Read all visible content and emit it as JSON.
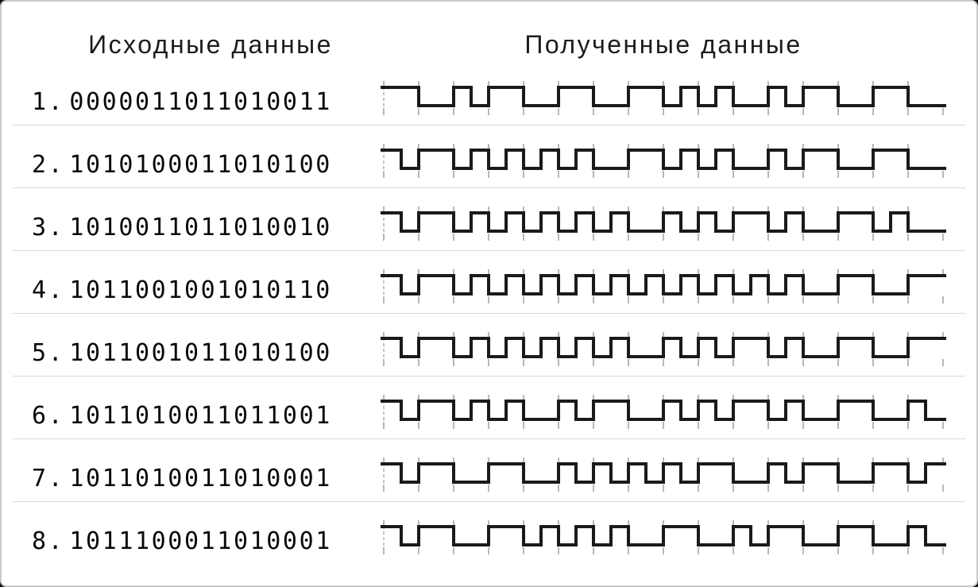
{
  "headers": {
    "source_label": "Исходные данные",
    "received_label": "Полученные данные"
  },
  "rows": [
    {
      "num": "1.",
      "source_bits": "0000011011010011",
      "signal_bits": "0010000011010000"
    },
    {
      "num": "2.",
      "source_bits": "1010100011010100",
      "signal_bits": "1011110011010000"
    },
    {
      "num": "3.",
      "source_bits": "1010011011010010",
      "signal_bits": "1011111011010010"
    },
    {
      "num": "4.",
      "source_bits": "1011001001010110",
      "signal_bits": "1011111111110000"
    },
    {
      "num": "5.",
      "source_bits": "1011001011010100",
      "signal_bits": "1011111011010000"
    },
    {
      "num": "6.",
      "source_bits": "1011010011011001",
      "signal_bits": "1011010011010001"
    },
    {
      "num": "7.",
      "source_bits": "1011010011010001",
      "signal_bits": "1000011110010001"
    },
    {
      "num": "8.",
      "source_bits": "1011100011010001",
      "signal_bits": "1000111000100001"
    }
  ],
  "waveform": {
    "encoding_rule": "biphase-mark: level inverts at every bit start; extra mid-bit inversion means 1",
    "bits_per_row": 16,
    "start_level": "high",
    "line_color": "#1a1a1a",
    "tick_color": "#b8b8b8",
    "dash_color": "#c4c4c4",
    "separator_color": "#d8d8d8",
    "background_color": "#ffffff",
    "text_color": "#0a0a0a"
  }
}
